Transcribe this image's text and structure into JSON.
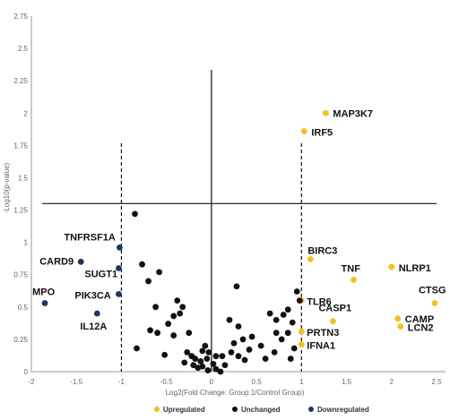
{
  "chart_data": {
    "type": "scatter",
    "title": "",
    "xlabel": "Log2(Fold Change: Group 1/Control Group)",
    "ylabel": "-Log10(p-value)",
    "xlim": [
      -2,
      2.6
    ],
    "ylim": [
      0,
      2.75
    ],
    "x_ticks": [
      "-2",
      "-1.5",
      "-1",
      "-0.5",
      "0",
      "0.5",
      "1",
      "1.5",
      "2",
      "2.5"
    ],
    "y_ticks": [
      "0",
      "0.25",
      "0.5",
      "0.75",
      "1",
      "1.25",
      "1.5",
      "1.75",
      "2",
      "2.25",
      "2.5",
      "2.75"
    ],
    "thresholds": {
      "fold_change": [
        -1,
        1
      ],
      "p_value_line": 1.3
    },
    "grid": false,
    "legend_position": "bottom",
    "colors": {
      "Upregulated": "#f4c020",
      "Unchanged": "#111111",
      "Downregulated": "#1d3566"
    },
    "series": [
      {
        "name": "Upregulated",
        "points": [
          {
            "x": 1.27,
            "y": 2.0,
            "label": "MAP3K7"
          },
          {
            "x": 1.03,
            "y": 1.86,
            "label": "IRF5"
          },
          {
            "x": 1.1,
            "y": 0.87,
            "label": "BIRC3"
          },
          {
            "x": 2.0,
            "y": 0.81,
            "label": "NLRP1"
          },
          {
            "x": 1.58,
            "y": 0.71,
            "label": "TNF"
          },
          {
            "x": 2.48,
            "y": 0.53,
            "label": "CTSG"
          },
          {
            "x": 1.0,
            "y": 0.55,
            "label": "TLR6"
          },
          {
            "x": 1.35,
            "y": 0.39,
            "label": "CASP1"
          },
          {
            "x": 2.07,
            "y": 0.41,
            "label": "CAMP"
          },
          {
            "x": 2.1,
            "y": 0.35,
            "label": "LCN2"
          },
          {
            "x": 1.0,
            "y": 0.31,
            "label": "PRTN3"
          },
          {
            "x": 1.0,
            "y": 0.21,
            "label": "IFNA1"
          }
        ]
      },
      {
        "name": "Unchanged",
        "points": [
          {
            "x": -0.85,
            "y": 1.22
          },
          {
            "x": -0.77,
            "y": 0.83
          },
          {
            "x": -0.58,
            "y": 0.77
          },
          {
            "x": -0.7,
            "y": 0.7
          },
          {
            "x": -0.38,
            "y": 0.55
          },
          {
            "x": -0.62,
            "y": 0.5
          },
          {
            "x": -0.32,
            "y": 0.5
          },
          {
            "x": -0.35,
            "y": 0.45
          },
          {
            "x": -0.42,
            "y": 0.43
          },
          {
            "x": -0.48,
            "y": 0.37
          },
          {
            "x": -0.68,
            "y": 0.32
          },
          {
            "x": -0.6,
            "y": 0.3
          },
          {
            "x": -0.42,
            "y": 0.28
          },
          {
            "x": -0.25,
            "y": 0.3
          },
          {
            "x": -0.83,
            "y": 0.18
          },
          {
            "x": -0.52,
            "y": 0.13
          },
          {
            "x": -0.27,
            "y": 0.15
          },
          {
            "x": -0.22,
            "y": 0.12
          },
          {
            "x": -0.3,
            "y": 0.07
          },
          {
            "x": -0.1,
            "y": 0.16
          },
          {
            "x": -0.18,
            "y": 0.1
          },
          {
            "x": -0.12,
            "y": 0.08
          },
          {
            "x": -0.07,
            "y": 0.2
          },
          {
            "x": -0.03,
            "y": 0.15
          },
          {
            "x": -0.05,
            "y": 0.1
          },
          {
            "x": 0.02,
            "y": 0.06
          },
          {
            "x": -0.1,
            "y": 0.04
          },
          {
            "x": -0.2,
            "y": 0.05
          },
          {
            "x": -0.15,
            "y": 0.03
          },
          {
            "x": 0.05,
            "y": 0.02
          },
          {
            "x": -0.04,
            "y": 0.01
          },
          {
            "x": 0.1,
            "y": 0.0
          },
          {
            "x": 0.15,
            "y": 0.05
          },
          {
            "x": 0.12,
            "y": 0.12
          },
          {
            "x": 0.05,
            "y": 0.12
          },
          {
            "x": 0.28,
            "y": 0.66
          },
          {
            "x": 0.2,
            "y": 0.4
          },
          {
            "x": 0.3,
            "y": 0.35
          },
          {
            "x": 0.35,
            "y": 0.25
          },
          {
            "x": 0.25,
            "y": 0.22
          },
          {
            "x": 0.22,
            "y": 0.15
          },
          {
            "x": 0.3,
            "y": 0.12
          },
          {
            "x": 0.37,
            "y": 0.09
          },
          {
            "x": 0.42,
            "y": 0.17
          },
          {
            "x": 0.45,
            "y": 0.27
          },
          {
            "x": 0.55,
            "y": 0.2
          },
          {
            "x": 0.6,
            "y": 0.1
          },
          {
            "x": 0.7,
            "y": 0.15
          },
          {
            "x": 0.65,
            "y": 0.45
          },
          {
            "x": 0.72,
            "y": 0.4
          },
          {
            "x": 0.8,
            "y": 0.44
          },
          {
            "x": 0.85,
            "y": 0.48
          },
          {
            "x": 0.9,
            "y": 0.38
          },
          {
            "x": 0.85,
            "y": 0.3
          },
          {
            "x": 0.78,
            "y": 0.25
          },
          {
            "x": 0.72,
            "y": 0.3
          },
          {
            "x": 0.95,
            "y": 0.62
          },
          {
            "x": 0.98,
            "y": 0.55
          },
          {
            "x": 0.92,
            "y": 0.18
          },
          {
            "x": 0.88,
            "y": 0.1
          }
        ]
      },
      {
        "name": "Downregulated",
        "points": [
          {
            "x": -1.02,
            "y": 0.96,
            "label": "TNFRSF1A"
          },
          {
            "x": -1.45,
            "y": 0.85,
            "label": "CARD9"
          },
          {
            "x": -1.03,
            "y": 0.8,
            "label": "SUGT1"
          },
          {
            "x": -1.03,
            "y": 0.6,
            "label": "PIK3CA"
          },
          {
            "x": -1.85,
            "y": 0.53,
            "label": "MPO"
          },
          {
            "x": -1.27,
            "y": 0.45,
            "label": "IL12A"
          }
        ]
      }
    ]
  }
}
